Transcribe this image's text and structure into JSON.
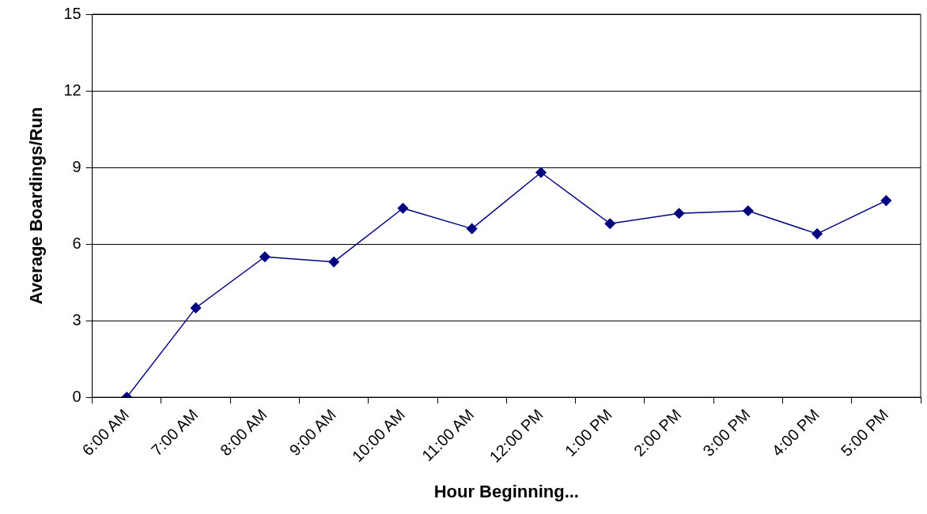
{
  "chart_data": {
    "type": "line",
    "xlabel": "Hour Beginning...",
    "ylabel": "Average Boardings/Run",
    "categories": [
      "6:00 AM",
      "7:00 AM",
      "8:00 AM",
      "9:00 AM",
      "10:00 AM",
      "11:00 AM",
      "12:00 PM",
      "1:00 PM",
      "2:00 PM",
      "3:00 PM",
      "4:00 PM",
      "5:00 PM"
    ],
    "series": [
      {
        "color": "#000080",
        "values": [
          0,
          3.5,
          5.5,
          5.3,
          7.4,
          6.6,
          8.8,
          6.8,
          7.2,
          7.3,
          6.4,
          7.7
        ]
      }
    ],
    "ylim": [
      0,
      15
    ],
    "yticks": [
      0,
      3,
      6,
      9,
      12,
      15
    ],
    "grid": "y",
    "legend": false,
    "marker": "diamond",
    "line_style": "solid"
  }
}
